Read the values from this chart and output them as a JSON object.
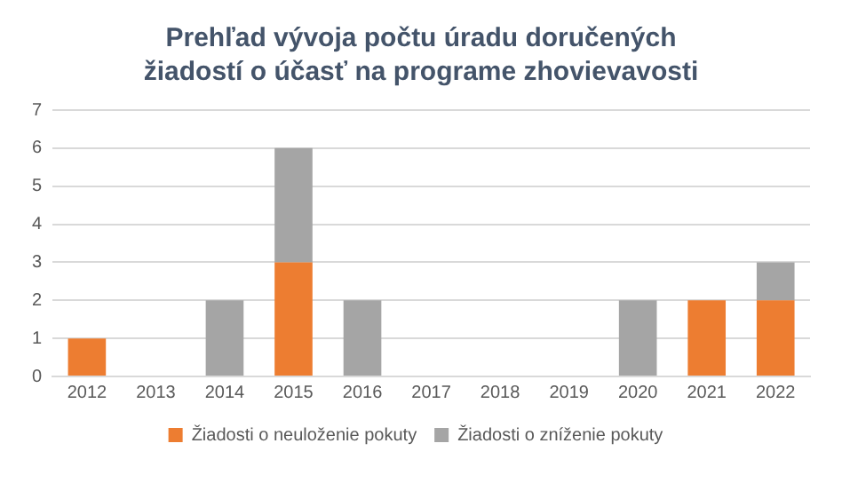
{
  "chart_data": {
    "type": "bar",
    "title": "Prehľad vývoja počtu úradu doručených žiadostí o účasť na programe zhovievavosti",
    "categories": [
      "2012",
      "2013",
      "2014",
      "2015",
      "2016",
      "2017",
      "2018",
      "2019",
      "2020",
      "2021",
      "2022"
    ],
    "series": [
      {
        "name": "Žiadosti o neuloženie pokuty",
        "color": "#ed7d31",
        "values": [
          1,
          0,
          0,
          3,
          0,
          0,
          0,
          0,
          0,
          2,
          2
        ]
      },
      {
        "name": "Žiadosti o zníženie pokuty",
        "color": "#a5a5a5",
        "values": [
          0,
          0,
          2,
          3,
          2,
          0,
          0,
          0,
          2,
          0,
          1
        ]
      }
    ],
    "stacked": true,
    "ylim": [
      0,
      7
    ],
    "yticks": [
      0,
      1,
      2,
      3,
      4,
      5,
      6,
      7
    ],
    "grid": "y",
    "legend": "bottom"
  }
}
